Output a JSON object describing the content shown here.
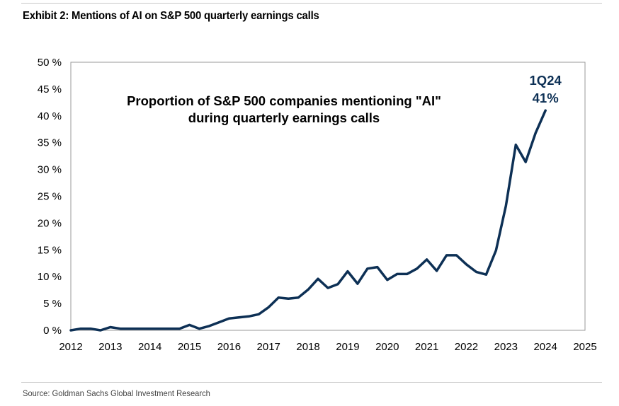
{
  "header": {
    "title": "Exhibit 2: Mentions of AI on S&P 500 quarterly earnings calls"
  },
  "footer": {
    "source": "Source: Goldman Sachs Global Investment Research"
  },
  "colors": {
    "line": "#0d3055",
    "annotation": "#0d3055",
    "plot_border": "#9a9a9a"
  },
  "chart_data": {
    "type": "line",
    "title_lines": [
      "Proportion of S&P 500 companies mentioning \"AI\"",
      "during quarterly earnings calls"
    ],
    "xlabel": "",
    "ylabel": "",
    "xlim": [
      2012,
      2025
    ],
    "ylim": [
      0,
      50
    ],
    "x_ticks": [
      "2012",
      "2013",
      "2014",
      "2015",
      "2016",
      "2017",
      "2018",
      "2019",
      "2020",
      "2021",
      "2022",
      "2023",
      "2024",
      "2025"
    ],
    "y_ticks": [
      "0 %",
      "5 %",
      "10 %",
      "15 %",
      "20 %",
      "25 %",
      "30 %",
      "35 %",
      "40 %",
      "45 %",
      "50 %"
    ],
    "grid": false,
    "legend": "none",
    "series": [
      {
        "x": [
          2012.0,
          2012.25,
          2012.5,
          2012.75,
          2013.0,
          2013.25,
          2013.5,
          2013.75,
          2014.0,
          2014.25,
          2014.5,
          2014.75,
          2015.0,
          2015.25,
          2015.5,
          2015.75,
          2016.0,
          2016.25,
          2016.5,
          2016.75,
          2017.0,
          2017.25,
          2017.5,
          2017.75,
          2018.0,
          2018.25,
          2018.5,
          2018.75,
          2019.0,
          2019.25,
          2019.5,
          2019.75,
          2020.0,
          2020.25,
          2020.5,
          2020.75,
          2021.0,
          2021.25,
          2021.5,
          2021.75,
          2022.0,
          2022.25,
          2022.5,
          2022.75,
          2023.0,
          2023.25,
          2023.5,
          2023.75,
          2024.0
        ],
        "values": [
          0.0,
          0.3,
          0.3,
          0.0,
          0.6,
          0.3,
          0.3,
          0.3,
          0.3,
          0.3,
          0.3,
          0.3,
          1.0,
          0.3,
          0.8,
          1.5,
          2.2,
          2.4,
          2.6,
          3.0,
          4.3,
          6.1,
          5.9,
          6.1,
          7.6,
          9.6,
          7.9,
          8.6,
          11.0,
          8.7,
          11.5,
          11.8,
          9.4,
          10.5,
          10.5,
          11.5,
          13.2,
          11.1,
          14.0,
          14.0,
          12.3,
          10.9,
          10.4,
          14.9,
          23.2,
          34.6,
          31.4,
          36.8,
          41.0
        ]
      }
    ],
    "annotations": [
      {
        "lines": [
          "1Q24",
          "41%"
        ],
        "x": 2024.0,
        "y": 41.0
      }
    ]
  }
}
